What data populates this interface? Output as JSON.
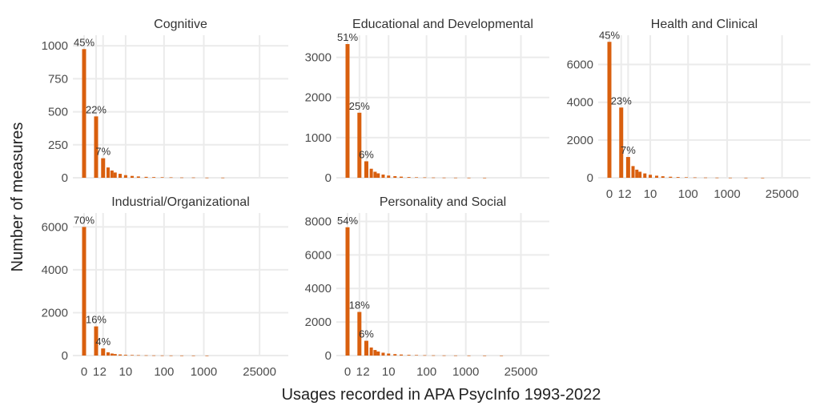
{
  "chart_data": {
    "type": "bar",
    "xlabel": "Usages recorded in APA PsycInfo 1993-2022",
    "ylabel": "Number of measures",
    "bar_color": "#D95F0E",
    "grid_color": "#EBEBEB",
    "x_tick_labels": [
      "0",
      "1",
      "2",
      "10",
      "100",
      "1000",
      "25000"
    ],
    "x_tick_values": [
      0,
      1,
      2,
      10,
      100,
      1000,
      25000
    ],
    "facets": [
      {
        "title": "Cognitive",
        "ylim": [
          0,
          1080
        ],
        "y_ticks": [
          0,
          250,
          500,
          750,
          1000
        ],
        "y_tick_labels": [
          "0",
          "250",
          "500",
          "750",
          "1000"
        ],
        "show_x_axis": false,
        "bars": [
          {
            "x": 0,
            "y": 975,
            "label": "45%"
          },
          {
            "x": 1,
            "y": 465,
            "label": "22%"
          },
          {
            "x": 2,
            "y": 148,
            "label": "7%"
          },
          {
            "x": 3,
            "y": 78
          },
          {
            "x": 4,
            "y": 55
          },
          {
            "x": 5,
            "y": 40
          },
          {
            "x": 7,
            "y": 30
          },
          {
            "x": 10,
            "y": 20
          },
          {
            "x": 15,
            "y": 14
          },
          {
            "x": 22,
            "y": 10
          },
          {
            "x": 35,
            "y": 7
          },
          {
            "x": 55,
            "y": 5
          },
          {
            "x": 90,
            "y": 4
          },
          {
            "x": 150,
            "y": 3
          },
          {
            "x": 280,
            "y": 2
          },
          {
            "x": 550,
            "y": 2
          },
          {
            "x": 1200,
            "y": 1
          },
          {
            "x": 3000,
            "y": 1
          }
        ]
      },
      {
        "title": "Educational and Developmental",
        "ylim": [
          0,
          3550
        ],
        "y_ticks": [
          0,
          1000,
          2000,
          3000
        ],
        "y_tick_labels": [
          "0",
          "1000",
          "2000",
          "3000"
        ],
        "show_x_axis": false,
        "bars": [
          {
            "x": 0,
            "y": 3330,
            "label": "51%"
          },
          {
            "x": 1,
            "y": 1620,
            "label": "25%"
          },
          {
            "x": 2,
            "y": 410,
            "label": "6%"
          },
          {
            "x": 3,
            "y": 225
          },
          {
            "x": 4,
            "y": 150
          },
          {
            "x": 5,
            "y": 110
          },
          {
            "x": 7,
            "y": 80
          },
          {
            "x": 10,
            "y": 55
          },
          {
            "x": 15,
            "y": 40
          },
          {
            "x": 22,
            "y": 28
          },
          {
            "x": 35,
            "y": 18
          },
          {
            "x": 55,
            "y": 12
          },
          {
            "x": 90,
            "y": 9
          },
          {
            "x": 150,
            "y": 6
          },
          {
            "x": 280,
            "y": 4
          },
          {
            "x": 550,
            "y": 3
          },
          {
            "x": 1200,
            "y": 2
          },
          {
            "x": 3000,
            "y": 1
          }
        ]
      },
      {
        "title": "Health and Clinical",
        "ylim": [
          0,
          7550
        ],
        "y_ticks": [
          0,
          2000,
          4000,
          6000
        ],
        "y_tick_labels": [
          "0",
          "2000",
          "4000",
          "6000"
        ],
        "show_x_axis": true,
        "bars": [
          {
            "x": 0,
            "y": 7200,
            "label": "45%"
          },
          {
            "x": 1,
            "y": 3720,
            "label": "23%"
          },
          {
            "x": 2,
            "y": 1100,
            "label": "7%"
          },
          {
            "x": 3,
            "y": 620
          },
          {
            "x": 4,
            "y": 430
          },
          {
            "x": 5,
            "y": 320
          },
          {
            "x": 7,
            "y": 230
          },
          {
            "x": 10,
            "y": 160
          },
          {
            "x": 15,
            "y": 110
          },
          {
            "x": 22,
            "y": 80
          },
          {
            "x": 35,
            "y": 55
          },
          {
            "x": 55,
            "y": 38
          },
          {
            "x": 90,
            "y": 26
          },
          {
            "x": 150,
            "y": 18
          },
          {
            "x": 280,
            "y": 12
          },
          {
            "x": 550,
            "y": 8
          },
          {
            "x": 1200,
            "y": 5
          },
          {
            "x": 3000,
            "y": 3
          },
          {
            "x": 8000,
            "y": 1
          }
        ]
      },
      {
        "title": "Industrial/Organizational",
        "ylim": [
          0,
          6650
        ],
        "y_ticks": [
          0,
          2000,
          4000,
          6000
        ],
        "y_tick_labels": [
          "0",
          "2000",
          "4000",
          "6000"
        ],
        "show_x_axis": true,
        "bars": [
          {
            "x": 0,
            "y": 6000,
            "label": "70%"
          },
          {
            "x": 1,
            "y": 1360,
            "label": "16%"
          },
          {
            "x": 2,
            "y": 330,
            "label": "4%"
          },
          {
            "x": 3,
            "y": 150
          },
          {
            "x": 4,
            "y": 95
          },
          {
            "x": 5,
            "y": 70
          },
          {
            "x": 7,
            "y": 50
          },
          {
            "x": 10,
            "y": 35
          },
          {
            "x": 15,
            "y": 25
          },
          {
            "x": 22,
            "y": 18
          },
          {
            "x": 35,
            "y": 12
          },
          {
            "x": 55,
            "y": 8
          },
          {
            "x": 90,
            "y": 6
          },
          {
            "x": 150,
            "y": 4
          },
          {
            "x": 280,
            "y": 3
          },
          {
            "x": 550,
            "y": 2
          },
          {
            "x": 1200,
            "y": 1
          }
        ]
      },
      {
        "title": "Personality and Social",
        "ylim": [
          0,
          8500
        ],
        "y_ticks": [
          0,
          2000,
          4000,
          6000,
          8000
        ],
        "y_tick_labels": [
          "0",
          "2000",
          "4000",
          "6000",
          "8000"
        ],
        "show_x_axis": true,
        "bars": [
          {
            "x": 0,
            "y": 7650,
            "label": "54%"
          },
          {
            "x": 1,
            "y": 2600,
            "label": "18%"
          },
          {
            "x": 2,
            "y": 880,
            "label": "6%"
          },
          {
            "x": 3,
            "y": 480
          },
          {
            "x": 4,
            "y": 330
          },
          {
            "x": 5,
            "y": 240
          },
          {
            "x": 7,
            "y": 170
          },
          {
            "x": 10,
            "y": 120
          },
          {
            "x": 15,
            "y": 85
          },
          {
            "x": 22,
            "y": 60
          },
          {
            "x": 35,
            "y": 42
          },
          {
            "x": 55,
            "y": 30
          },
          {
            "x": 90,
            "y": 20
          },
          {
            "x": 150,
            "y": 14
          },
          {
            "x": 280,
            "y": 9
          },
          {
            "x": 550,
            "y": 6
          },
          {
            "x": 1200,
            "y": 4
          },
          {
            "x": 3000,
            "y": 2
          },
          {
            "x": 8000,
            "y": 1
          }
        ]
      }
    ]
  }
}
